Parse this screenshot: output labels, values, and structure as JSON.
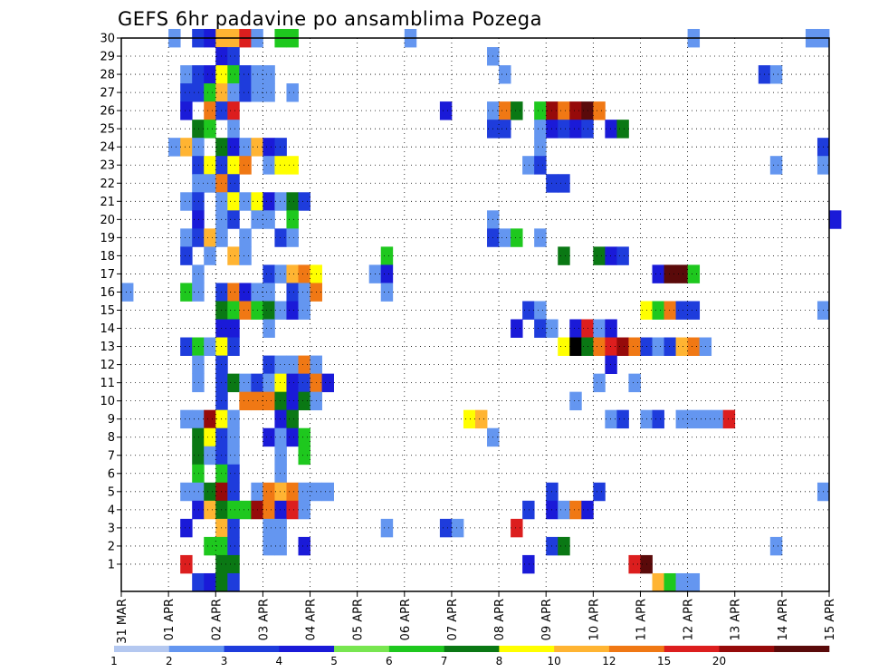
{
  "chart_data": {
    "type": "heatmap",
    "title": "GEFS 6hr padavine po ansamblima Pozega",
    "x_ticks": [
      "31 MAR",
      "01 APR",
      "02 APR",
      "03 APR",
      "04 APR",
      "05 APR",
      "06 APR",
      "07 APR",
      "08 APR",
      "09 APR",
      "10 APR",
      "11 APR",
      "12 APR",
      "13 APR",
      "14 APR",
      "15 APR"
    ],
    "y_ticks": [
      1,
      2,
      3,
      4,
      5,
      6,
      7,
      8,
      9,
      10,
      11,
      12,
      13,
      14,
      15,
      16,
      17,
      18,
      19,
      20,
      21,
      22,
      23,
      24,
      25,
      26,
      27,
      28,
      29,
      30
    ],
    "xlim_days": [
      0,
      15
    ],
    "step_hours": 6,
    "ylim": [
      0,
      30
    ],
    "grid": true,
    "levels": [
      "1",
      "2",
      "3",
      "4",
      "5",
      "6",
      "7",
      "8",
      "10",
      "12",
      "15",
      "20"
    ],
    "colors": [
      "#b4c8f0",
      "#6496f0",
      "#1e3cdc",
      "#1a1ad8",
      "#78e650",
      "#1ec81e",
      "#0a7814",
      "#ffff00",
      "#ffb432",
      "#f07814",
      "#dc1e1e",
      "#960a0a",
      "#5a0a0a"
    ],
    "cells": [
      [
        4,
        30,
        1
      ],
      [
        6,
        30,
        2
      ],
      [
        7,
        30,
        3
      ],
      [
        8,
        30,
        8
      ],
      [
        9,
        30,
        8
      ],
      [
        10,
        30,
        10
      ],
      [
        11,
        30,
        1
      ],
      [
        13,
        30,
        5
      ],
      [
        14,
        30,
        5
      ],
      [
        24,
        30,
        1
      ],
      [
        48,
        30,
        1
      ],
      [
        58,
        30,
        1
      ],
      [
        59,
        30,
        1
      ],
      [
        8,
        29,
        3
      ],
      [
        9,
        29,
        2
      ],
      [
        31,
        29,
        1
      ],
      [
        5,
        28,
        1
      ],
      [
        6,
        28,
        2
      ],
      [
        7,
        28,
        3
      ],
      [
        8,
        28,
        7
      ],
      [
        9,
        28,
        5
      ],
      [
        10,
        28,
        2
      ],
      [
        11,
        28,
        1
      ],
      [
        12,
        28,
        1
      ],
      [
        32,
        28,
        1
      ],
      [
        54,
        28,
        2
      ],
      [
        55,
        28,
        1
      ],
      [
        5,
        27,
        2
      ],
      [
        6,
        27,
        2
      ],
      [
        7,
        27,
        5
      ],
      [
        8,
        27,
        8
      ],
      [
        9,
        27,
        1
      ],
      [
        10,
        27,
        2
      ],
      [
        11,
        27,
        1
      ],
      [
        12,
        27,
        1
      ],
      [
        14,
        27,
        1
      ],
      [
        5,
        26,
        3
      ],
      [
        7,
        26,
        9
      ],
      [
        8,
        26,
        2
      ],
      [
        9,
        26,
        10
      ],
      [
        27,
        26,
        3
      ],
      [
        31,
        26,
        1
      ],
      [
        32,
        26,
        9
      ],
      [
        33,
        26,
        6
      ],
      [
        35,
        26,
        5
      ],
      [
        36,
        26,
        11
      ],
      [
        37,
        26,
        9
      ],
      [
        38,
        26,
        11
      ],
      [
        39,
        26,
        12
      ],
      [
        40,
        26,
        9
      ],
      [
        6,
        25,
        6
      ],
      [
        7,
        25,
        5
      ],
      [
        9,
        25,
        1
      ],
      [
        31,
        25,
        2
      ],
      [
        32,
        25,
        2
      ],
      [
        35,
        25,
        1
      ],
      [
        36,
        25,
        3
      ],
      [
        37,
        25,
        2
      ],
      [
        38,
        25,
        3
      ],
      [
        39,
        25,
        2
      ],
      [
        41,
        25,
        3
      ],
      [
        42,
        25,
        6
      ],
      [
        4,
        24,
        1
      ],
      [
        5,
        24,
        8
      ],
      [
        6,
        24,
        1
      ],
      [
        8,
        24,
        6
      ],
      [
        9,
        24,
        3
      ],
      [
        10,
        24,
        1
      ],
      [
        11,
        24,
        8
      ],
      [
        12,
        24,
        3
      ],
      [
        13,
        24,
        2
      ],
      [
        35,
        24,
        1
      ],
      [
        59,
        24,
        2
      ],
      [
        6,
        23,
        2
      ],
      [
        7,
        23,
        7
      ],
      [
        8,
        23,
        2
      ],
      [
        9,
        23,
        7
      ],
      [
        10,
        23,
        9
      ],
      [
        12,
        23,
        1
      ],
      [
        13,
        23,
        7
      ],
      [
        14,
        23,
        7
      ],
      [
        34,
        23,
        1
      ],
      [
        35,
        23,
        2
      ],
      [
        55,
        23,
        1
      ],
      [
        59,
        23,
        1
      ],
      [
        6,
        22,
        1
      ],
      [
        7,
        22,
        1
      ],
      [
        8,
        22,
        9
      ],
      [
        9,
        22,
        2
      ],
      [
        36,
        22,
        2
      ],
      [
        37,
        22,
        2
      ],
      [
        5,
        21,
        1
      ],
      [
        6,
        21,
        2
      ],
      [
        8,
        21,
        1
      ],
      [
        9,
        21,
        7
      ],
      [
        10,
        21,
        1
      ],
      [
        11,
        21,
        7
      ],
      [
        12,
        21,
        3
      ],
      [
        13,
        21,
        1
      ],
      [
        14,
        21,
        6
      ],
      [
        15,
        21,
        2
      ],
      [
        6,
        20,
        3
      ],
      [
        8,
        20,
        1
      ],
      [
        9,
        20,
        2
      ],
      [
        11,
        20,
        1
      ],
      [
        12,
        20,
        1
      ],
      [
        14,
        20,
        5
      ],
      [
        31,
        20,
        1
      ],
      [
        60,
        20,
        3
      ],
      [
        5,
        19,
        1
      ],
      [
        6,
        19,
        2
      ],
      [
        7,
        19,
        8
      ],
      [
        8,
        19,
        1
      ],
      [
        10,
        19,
        1
      ],
      [
        13,
        19,
        2
      ],
      [
        14,
        19,
        1
      ],
      [
        31,
        19,
        2
      ],
      [
        32,
        19,
        1
      ],
      [
        33,
        19,
        5
      ],
      [
        35,
        19,
        1
      ],
      [
        5,
        18,
        2
      ],
      [
        7,
        18,
        1
      ],
      [
        9,
        18,
        8
      ],
      [
        10,
        18,
        1
      ],
      [
        22,
        18,
        5
      ],
      [
        37,
        18,
        6
      ],
      [
        40,
        18,
        6
      ],
      [
        41,
        18,
        3
      ],
      [
        42,
        18,
        2
      ],
      [
        6,
        17,
        1
      ],
      [
        12,
        17,
        2
      ],
      [
        13,
        17,
        1
      ],
      [
        14,
        17,
        8
      ],
      [
        15,
        17,
        9
      ],
      [
        16,
        17,
        7
      ],
      [
        21,
        17,
        1
      ],
      [
        22,
        17,
        3
      ],
      [
        45,
        17,
        3
      ],
      [
        46,
        17,
        12
      ],
      [
        47,
        17,
        12
      ],
      [
        48,
        17,
        5
      ],
      [
        0,
        16,
        1
      ],
      [
        5,
        16,
        5
      ],
      [
        6,
        16,
        1
      ],
      [
        8,
        16,
        2
      ],
      [
        9,
        16,
        9
      ],
      [
        10,
        16,
        3
      ],
      [
        11,
        16,
        1
      ],
      [
        12,
        16,
        1
      ],
      [
        14,
        16,
        2
      ],
      [
        15,
        16,
        1
      ],
      [
        16,
        16,
        9
      ],
      [
        22,
        16,
        1
      ],
      [
        8,
        15,
        6
      ],
      [
        9,
        15,
        5
      ],
      [
        10,
        15,
        9
      ],
      [
        11,
        15,
        5
      ],
      [
        12,
        15,
        6
      ],
      [
        13,
        15,
        1
      ],
      [
        14,
        15,
        3
      ],
      [
        15,
        15,
        1
      ],
      [
        34,
        15,
        2
      ],
      [
        35,
        15,
        1
      ],
      [
        44,
        15,
        7
      ],
      [
        45,
        15,
        5
      ],
      [
        46,
        15,
        9
      ],
      [
        47,
        15,
        2
      ],
      [
        48,
        15,
        2
      ],
      [
        59,
        15,
        1
      ],
      [
        8,
        14,
        3
      ],
      [
        9,
        14,
        3
      ],
      [
        12,
        14,
        1
      ],
      [
        33,
        14,
        3
      ],
      [
        35,
        14,
        2
      ],
      [
        36,
        14,
        1
      ],
      [
        38,
        14,
        3
      ],
      [
        39,
        14,
        10
      ],
      [
        40,
        14,
        1
      ],
      [
        41,
        14,
        3
      ],
      [
        5,
        13,
        2
      ],
      [
        6,
        13,
        5
      ],
      [
        7,
        13,
        1
      ],
      [
        8,
        13,
        7
      ],
      [
        9,
        13,
        2
      ],
      [
        37,
        13,
        7
      ],
      [
        38,
        13,
        13
      ],
      [
        39,
        13,
        6
      ],
      [
        40,
        13,
        9
      ],
      [
        41,
        13,
        10
      ],
      [
        42,
        13,
        11
      ],
      [
        43,
        13,
        9
      ],
      [
        44,
        13,
        2
      ],
      [
        45,
        13,
        1
      ],
      [
        46,
        13,
        2
      ],
      [
        47,
        13,
        8
      ],
      [
        48,
        13,
        9
      ],
      [
        49,
        13,
        1
      ],
      [
        6,
        12,
        1
      ],
      [
        8,
        12,
        2
      ],
      [
        12,
        12,
        2
      ],
      [
        13,
        12,
        1
      ],
      [
        14,
        12,
        1
      ],
      [
        15,
        12,
        9
      ],
      [
        16,
        12,
        1
      ],
      [
        41,
        12,
        3
      ],
      [
        6,
        11,
        1
      ],
      [
        8,
        11,
        2
      ],
      [
        9,
        11,
        6
      ],
      [
        10,
        11,
        1
      ],
      [
        11,
        11,
        2
      ],
      [
        12,
        11,
        1
      ],
      [
        13,
        11,
        7
      ],
      [
        14,
        11,
        3
      ],
      [
        15,
        11,
        2
      ],
      [
        16,
        11,
        9
      ],
      [
        17,
        11,
        3
      ],
      [
        40,
        11,
        1
      ],
      [
        43,
        11,
        1
      ],
      [
        8,
        10,
        2
      ],
      [
        10,
        10,
        9
      ],
      [
        11,
        10,
        9
      ],
      [
        12,
        10,
        9
      ],
      [
        13,
        10,
        6
      ],
      [
        14,
        10,
        3
      ],
      [
        15,
        10,
        6
      ],
      [
        16,
        10,
        1
      ],
      [
        38,
        10,
        1
      ],
      [
        5,
        9,
        1
      ],
      [
        6,
        9,
        1
      ],
      [
        7,
        9,
        11
      ],
      [
        8,
        9,
        7
      ],
      [
        9,
        9,
        1
      ],
      [
        13,
        9,
        3
      ],
      [
        14,
        9,
        6
      ],
      [
        29,
        9,
        7
      ],
      [
        30,
        9,
        8
      ],
      [
        41,
        9,
        1
      ],
      [
        42,
        9,
        2
      ],
      [
        44,
        9,
        1
      ],
      [
        45,
        9,
        2
      ],
      [
        47,
        9,
        1
      ],
      [
        48,
        9,
        1
      ],
      [
        49,
        9,
        1
      ],
      [
        50,
        9,
        1
      ],
      [
        51,
        9,
        10
      ],
      [
        6,
        8,
        6
      ],
      [
        7,
        8,
        7
      ],
      [
        8,
        8,
        2
      ],
      [
        9,
        8,
        1
      ],
      [
        12,
        8,
        3
      ],
      [
        13,
        8,
        1
      ],
      [
        14,
        8,
        3
      ],
      [
        15,
        8,
        5
      ],
      [
        31,
        8,
        1
      ],
      [
        6,
        7,
        6
      ],
      [
        7,
        7,
        1
      ],
      [
        8,
        7,
        2
      ],
      [
        9,
        7,
        1
      ],
      [
        13,
        7,
        1
      ],
      [
        15,
        7,
        5
      ],
      [
        6,
        6,
        5
      ],
      [
        8,
        6,
        5
      ],
      [
        9,
        6,
        2
      ],
      [
        13,
        6,
        1
      ],
      [
        5,
        5,
        1
      ],
      [
        6,
        5,
        1
      ],
      [
        7,
        5,
        6
      ],
      [
        8,
        5,
        11
      ],
      [
        9,
        5,
        2
      ],
      [
        11,
        5,
        1
      ],
      [
        12,
        5,
        9
      ],
      [
        13,
        5,
        8
      ],
      [
        14,
        5,
        9
      ],
      [
        15,
        5,
        1
      ],
      [
        16,
        5,
        1
      ],
      [
        17,
        5,
        1
      ],
      [
        36,
        5,
        2
      ],
      [
        40,
        5,
        2
      ],
      [
        59,
        5,
        1
      ],
      [
        6,
        4,
        3
      ],
      [
        7,
        4,
        8
      ],
      [
        8,
        4,
        6
      ],
      [
        9,
        4,
        5
      ],
      [
        10,
        4,
        5
      ],
      [
        11,
        4,
        11
      ],
      [
        12,
        4,
        9
      ],
      [
        13,
        4,
        3
      ],
      [
        14,
        4,
        10
      ],
      [
        15,
        4,
        1
      ],
      [
        34,
        4,
        2
      ],
      [
        36,
        4,
        3
      ],
      [
        37,
        4,
        1
      ],
      [
        38,
        4,
        9
      ],
      [
        39,
        4,
        3
      ],
      [
        5,
        3,
        3
      ],
      [
        8,
        3,
        8
      ],
      [
        9,
        3,
        2
      ],
      [
        12,
        3,
        1
      ],
      [
        13,
        3,
        1
      ],
      [
        22,
        3,
        1
      ],
      [
        27,
        3,
        2
      ],
      [
        28,
        3,
        1
      ],
      [
        33,
        3,
        10
      ],
      [
        7,
        2,
        5
      ],
      [
        8,
        2,
        5
      ],
      [
        9,
        2,
        2
      ],
      [
        12,
        2,
        1
      ],
      [
        13,
        2,
        1
      ],
      [
        15,
        2,
        3
      ],
      [
        36,
        2,
        2
      ],
      [
        37,
        2,
        6
      ],
      [
        55,
        2,
        1
      ],
      [
        5,
        1,
        10
      ],
      [
        8,
        1,
        6
      ],
      [
        9,
        1,
        6
      ],
      [
        34,
        1,
        3
      ],
      [
        43,
        1,
        10
      ],
      [
        44,
        1,
        12
      ],
      [
        6,
        0,
        2
      ],
      [
        7,
        0,
        3
      ],
      [
        8,
        0,
        6
      ],
      [
        9,
        0,
        2
      ],
      [
        45,
        0,
        8
      ],
      [
        46,
        0,
        5
      ],
      [
        47,
        0,
        1
      ],
      [
        48,
        0,
        1
      ]
    ]
  }
}
